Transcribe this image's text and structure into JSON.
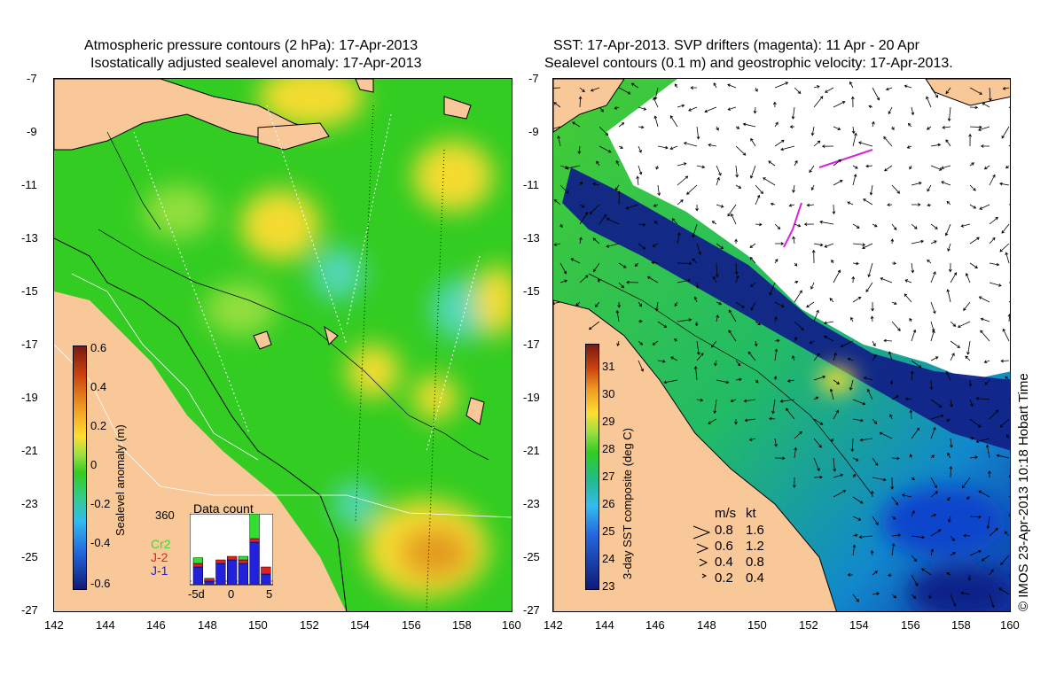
{
  "left_panel": {
    "title_line1": "Atmospheric pressure contours (2 hPa): 17-Apr-2013",
    "title_line2": "Isostatically adjusted sealevel anomaly: 17-Apr-2013",
    "colorbar": {
      "label": "Sealevel anomaly (m)",
      "ticks": [
        "0.6",
        "0.4",
        "0.2",
        "0",
        "-0.2",
        "-0.4",
        "-0.6"
      ]
    },
    "inset": {
      "title": "Data count",
      "ymax": "360",
      "xlabels": [
        "-5d",
        "0",
        "5"
      ],
      "legend": [
        {
          "name": "Cr2",
          "color": "#33dd33"
        },
        {
          "name": "J-2",
          "color": "#dd2222"
        },
        {
          "name": "J-1",
          "color": "#2222dd"
        }
      ],
      "stack_j1": [
        0.25,
        0.05,
        0.3,
        0.35,
        0.3,
        0.6,
        0.15
      ],
      "stack_j2": [
        0.05,
        0.04,
        0.05,
        0.05,
        0.05,
        0.05,
        0.1
      ],
      "stack_cr2": [
        0.08,
        0.0,
        0.0,
        0.0,
        0.05,
        0.35,
        0.0
      ]
    }
  },
  "right_panel": {
    "title_line1": "SST: 17-Apr-2013. SVP drifters (magenta): 11 Apr - 20 Apr",
    "title_line2": "Sealevel contours (0.1 m) and geostrophic velocity: 17-Apr-2013.",
    "colorbar": {
      "label": "3-day SST composite (deg C)",
      "ticks": [
        "31",
        "30",
        "29",
        "28",
        "27",
        "26",
        "25",
        "24",
        "23"
      ]
    },
    "speed_legend": {
      "header_ms": "m/s",
      "header_kt": "kt",
      "rows": [
        {
          "ms": "0.8",
          "kt": "1.6"
        },
        {
          "ms": "0.6",
          "kt": "1.2"
        },
        {
          "ms": "0.4",
          "kt": "0.8"
        },
        {
          "ms": "0.2",
          "kt": "0.4"
        }
      ]
    },
    "footer": "© IMOS 23-Apr-2013 10:18 Hobart Time"
  },
  "axes": {
    "lat_ticks": [
      "-7",
      "-9",
      "-11",
      "-13",
      "-15",
      "-17",
      "-19",
      "-21",
      "-23",
      "-25",
      "-27"
    ],
    "lon_ticks": [
      "142",
      "144",
      "146",
      "148",
      "150",
      "152",
      "154",
      "156",
      "158",
      "160"
    ]
  },
  "colors": {
    "land": "#f9c898",
    "sla_green": "#33cc22",
    "sla_yellow": "#ffdd33",
    "sla_orange": "#ee9922",
    "sla_cyan": "#55d8c0",
    "sst_blue": "#1133bb",
    "sst_green": "#33bb55",
    "cloud": "#ffffff"
  }
}
